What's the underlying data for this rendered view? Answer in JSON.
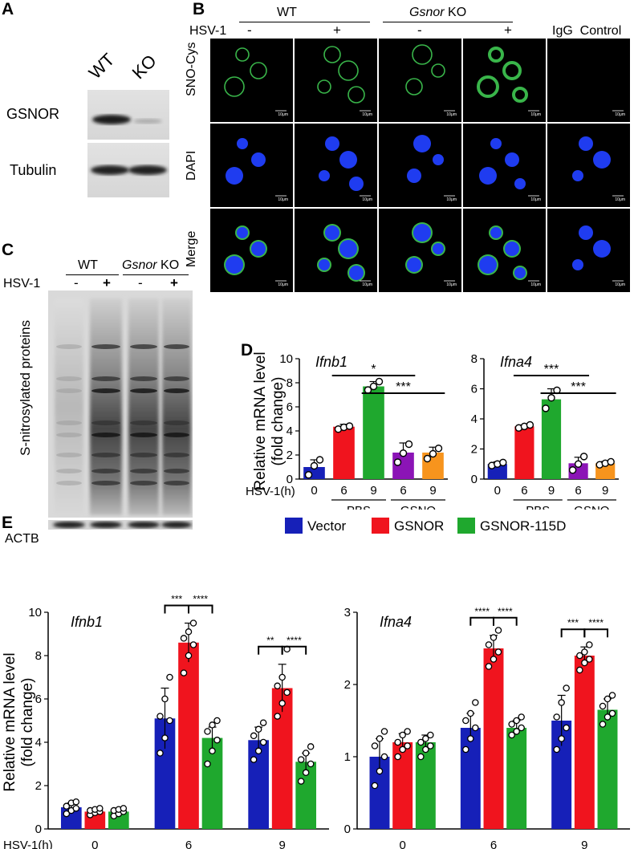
{
  "panel_labels": [
    "A",
    "B",
    "C",
    "D",
    "E"
  ],
  "panel_a": {
    "lanes": [
      "WT",
      "KO"
    ],
    "rows": [
      "GSNOR",
      "Tubulin"
    ]
  },
  "panel_b": {
    "group_wt": "WT",
    "group_ko_italic": "Gsnor",
    "group_ko_suffix": "KO",
    "igg_label": "IgG  Control",
    "hsv_label": "HSV-1",
    "conditions": [
      "-",
      "+",
      "-",
      "+"
    ],
    "rows": [
      "SNO-Cys",
      "DAPI",
      "Merge"
    ],
    "scale_bar": "10μm",
    "colors": {
      "sno": "#39b54a",
      "dapi": "#1f3cf0",
      "background": "#000000"
    }
  },
  "panel_c": {
    "group_wt": "WT",
    "group_ko_italic": "Gsnor",
    "group_ko_suffix": "KO",
    "hsv_label": "HSV-1",
    "conditions": [
      "-",
      "+",
      "-",
      "+"
    ],
    "ylabel": "S-nitrosylated proteins",
    "loading_control": "ACTB"
  },
  "chart_data": [
    {
      "id": "D-ifnb1",
      "type": "bar",
      "title": "Ifnb1",
      "ylabel": "Relative mRNA level\n(fold change)",
      "ylim": [
        0,
        10
      ],
      "yticks": [
        0,
        2,
        4,
        6,
        8,
        10
      ],
      "categories": [
        "0",
        "6",
        "9",
        "6",
        "9"
      ],
      "groups": [
        "",
        "PBS",
        "PBS",
        "GSNO",
        "GSNO"
      ],
      "xlabel": "HSV-1(h)",
      "values": [
        1.0,
        4.35,
        7.7,
        2.2,
        2.2
      ],
      "errors": [
        0.6,
        0.2,
        0.4,
        0.8,
        0.45
      ],
      "points": [
        [
          0.35,
          1.1,
          1.6
        ],
        [
          4.15,
          4.3,
          4.4
        ],
        [
          7.4,
          7.7,
          8.1
        ],
        [
          1.4,
          2.15,
          2.9
        ],
        [
          1.7,
          2.1,
          2.55
        ]
      ],
      "colors": [
        "#1620b8",
        "#f0141e",
        "#1fa82e",
        "#8b14b6",
        "#f7941d"
      ],
      "significance": [
        {
          "from": 1,
          "to": 3,
          "label": "*"
        },
        {
          "from": 2,
          "to": 4,
          "label": "***"
        }
      ]
    },
    {
      "id": "D-ifna4",
      "type": "bar",
      "title": "Ifna4",
      "ylim": [
        0,
        8
      ],
      "yticks": [
        0,
        2,
        4,
        6,
        8
      ],
      "categories": [
        "0",
        "6",
        "9",
        "6",
        "9"
      ],
      "groups": [
        "",
        "PBS",
        "PBS",
        "GSNO",
        "GSNO"
      ],
      "values": [
        1.0,
        3.5,
        5.3,
        1.05,
        1.05
      ],
      "errors": [
        0.15,
        0.1,
        0.7,
        0.4,
        0.12
      ],
      "points": [
        [
          0.9,
          1.0,
          1.1
        ],
        [
          3.4,
          3.5,
          3.6
        ],
        [
          4.7,
          5.4,
          5.9
        ],
        [
          0.6,
          1.0,
          1.5
        ],
        [
          0.95,
          1.05,
          1.15
        ]
      ],
      "colors": [
        "#1620b8",
        "#f0141e",
        "#1fa82e",
        "#8b14b6",
        "#f7941d"
      ],
      "significance": [
        {
          "from": 1,
          "to": 3,
          "label": "***"
        },
        {
          "from": 2,
          "to": 4,
          "label": "***"
        }
      ]
    },
    {
      "id": "E-ifnb1",
      "type": "bar",
      "title": "Ifnb1",
      "ylabel": "Relative mRNA level\n(fold change)",
      "xlabel": "HSV-1(h)",
      "ylim": [
        0,
        10
      ],
      "yticks": [
        0,
        2,
        4,
        6,
        8,
        10
      ],
      "categories": [
        "0",
        "6",
        "9"
      ],
      "series": [
        {
          "name": "Vector",
          "color": "#1620b8",
          "values": [
            1.0,
            5.1,
            4.1
          ],
          "errors": [
            0.2,
            1.4,
            0.6
          ],
          "points": [
            [
              0.7,
              0.85,
              0.95,
              1.05,
              1.2,
              1.25
            ],
            [
              3.5,
              4.2,
              5.0,
              5.2,
              6.0,
              7.0
            ],
            [
              3.2,
              3.6,
              4.0,
              4.3,
              4.6,
              4.9
            ]
          ]
        },
        {
          "name": "GSNOR",
          "color": "#f0141e",
          "values": [
            0.8,
            8.6,
            6.5
          ],
          "errors": [
            0.15,
            0.9,
            1.1
          ],
          "points": [
            [
              0.65,
              0.75,
              0.8,
              0.85,
              0.9,
              0.95
            ],
            [
              7.2,
              8.0,
              8.5,
              8.8,
              9.1,
              9.5
            ],
            [
              5.2,
              5.8,
              6.3,
              6.6,
              7.0,
              8.3
            ]
          ]
        },
        {
          "name": "GSNOR-115D",
          "color": "#1fa82e",
          "values": [
            0.8,
            4.2,
            3.1
          ],
          "errors": [
            0.15,
            0.5,
            0.4
          ],
          "points": [
            [
              0.6,
              0.7,
              0.8,
              0.85,
              0.9,
              0.95
            ],
            [
              3.0,
              3.6,
              4.1,
              4.5,
              4.8,
              5.0
            ],
            [
              2.2,
              2.6,
              3.0,
              3.2,
              3.5,
              3.8
            ]
          ]
        }
      ],
      "significance": [
        {
          "group": 1,
          "pairs": [
            {
              "a": 0,
              "b": 1,
              "label": "***"
            },
            {
              "a": 1,
              "b": 2,
              "label": "****"
            }
          ]
        },
        {
          "group": 2,
          "pairs": [
            {
              "a": 0,
              "b": 1,
              "label": "**"
            },
            {
              "a": 1,
              "b": 2,
              "label": "****"
            }
          ]
        }
      ]
    },
    {
      "id": "E-ifna4",
      "type": "bar",
      "title": "Ifna4",
      "ylim": [
        0,
        3
      ],
      "yticks": [
        0,
        1,
        2,
        3
      ],
      "categories": [
        "0",
        "6",
        "9"
      ],
      "series": [
        {
          "name": "Vector",
          "color": "#1620b8",
          "values": [
            1.0,
            1.4,
            1.5
          ],
          "errors": [
            0.25,
            0.2,
            0.35
          ],
          "points": [
            [
              0.6,
              0.8,
              1.0,
              1.15,
              1.25,
              1.35
            ],
            [
              1.1,
              1.25,
              1.4,
              1.5,
              1.6,
              1.75
            ],
            [
              1.1,
              1.25,
              1.4,
              1.55,
              1.75,
              1.95
            ]
          ]
        },
        {
          "name": "GSNOR",
          "color": "#f0141e",
          "values": [
            1.2,
            2.5,
            2.4
          ],
          "errors": [
            0.12,
            0.18,
            0.12
          ],
          "points": [
            [
              1.0,
              1.1,
              1.15,
              1.2,
              1.3,
              1.35
            ],
            [
              2.25,
              2.35,
              2.45,
              2.55,
              2.65,
              2.75
            ],
            [
              2.2,
              2.3,
              2.35,
              2.4,
              2.45,
              2.55
            ]
          ]
        },
        {
          "name": "GSNOR-115D",
          "color": "#1fa82e",
          "values": [
            1.2,
            1.4,
            1.65
          ],
          "errors": [
            0.1,
            0.1,
            0.15
          ],
          "points": [
            [
              1.0,
              1.1,
              1.15,
              1.2,
              1.25,
              1.3
            ],
            [
              1.3,
              1.35,
              1.4,
              1.45,
              1.5,
              1.55
            ],
            [
              1.45,
              1.55,
              1.6,
              1.7,
              1.8,
              1.85
            ]
          ]
        }
      ],
      "significance": [
        {
          "group": 1,
          "pairs": [
            {
              "a": 0,
              "b": 1,
              "label": "****"
            },
            {
              "a": 1,
              "b": 2,
              "label": "****"
            }
          ]
        },
        {
          "group": 2,
          "pairs": [
            {
              "a": 0,
              "b": 1,
              "label": "***"
            },
            {
              "a": 1,
              "b": 2,
              "label": "****"
            }
          ]
        }
      ]
    }
  ]
}
